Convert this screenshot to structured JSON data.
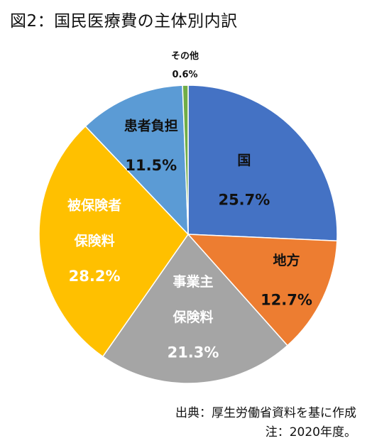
{
  "chart_data": {
    "type": "pie",
    "title": "図2：国民医療費の主体別内訳",
    "slices": [
      {
        "label_lines": [
          "国"
        ],
        "value": 25.7,
        "value_label": "25.7%",
        "color": "#4472c4"
      },
      {
        "label_lines": [
          "地方"
        ],
        "value": 12.7,
        "value_label": "12.7%",
        "color": "#ed7d31"
      },
      {
        "label_lines": [
          "事業主",
          "保険料"
        ],
        "value": 21.3,
        "value_label": "21.3%",
        "color": "#a5a5a5"
      },
      {
        "label_lines": [
          "被保険者",
          "保険料"
        ],
        "value": 28.2,
        "value_label": "28.2%",
        "color": "#ffc000"
      },
      {
        "label_lines": [
          "患者負担"
        ],
        "value": 11.5,
        "value_label": "11.5%",
        "color": "#5b9bd5"
      },
      {
        "label_lines": [
          "その他"
        ],
        "value": 0.6,
        "value_label": "0.6%",
        "color": "#70ad47"
      }
    ]
  },
  "footer": {
    "source": "出典：厚生労働省資料を基に作成",
    "note": "注：2020年度。"
  }
}
